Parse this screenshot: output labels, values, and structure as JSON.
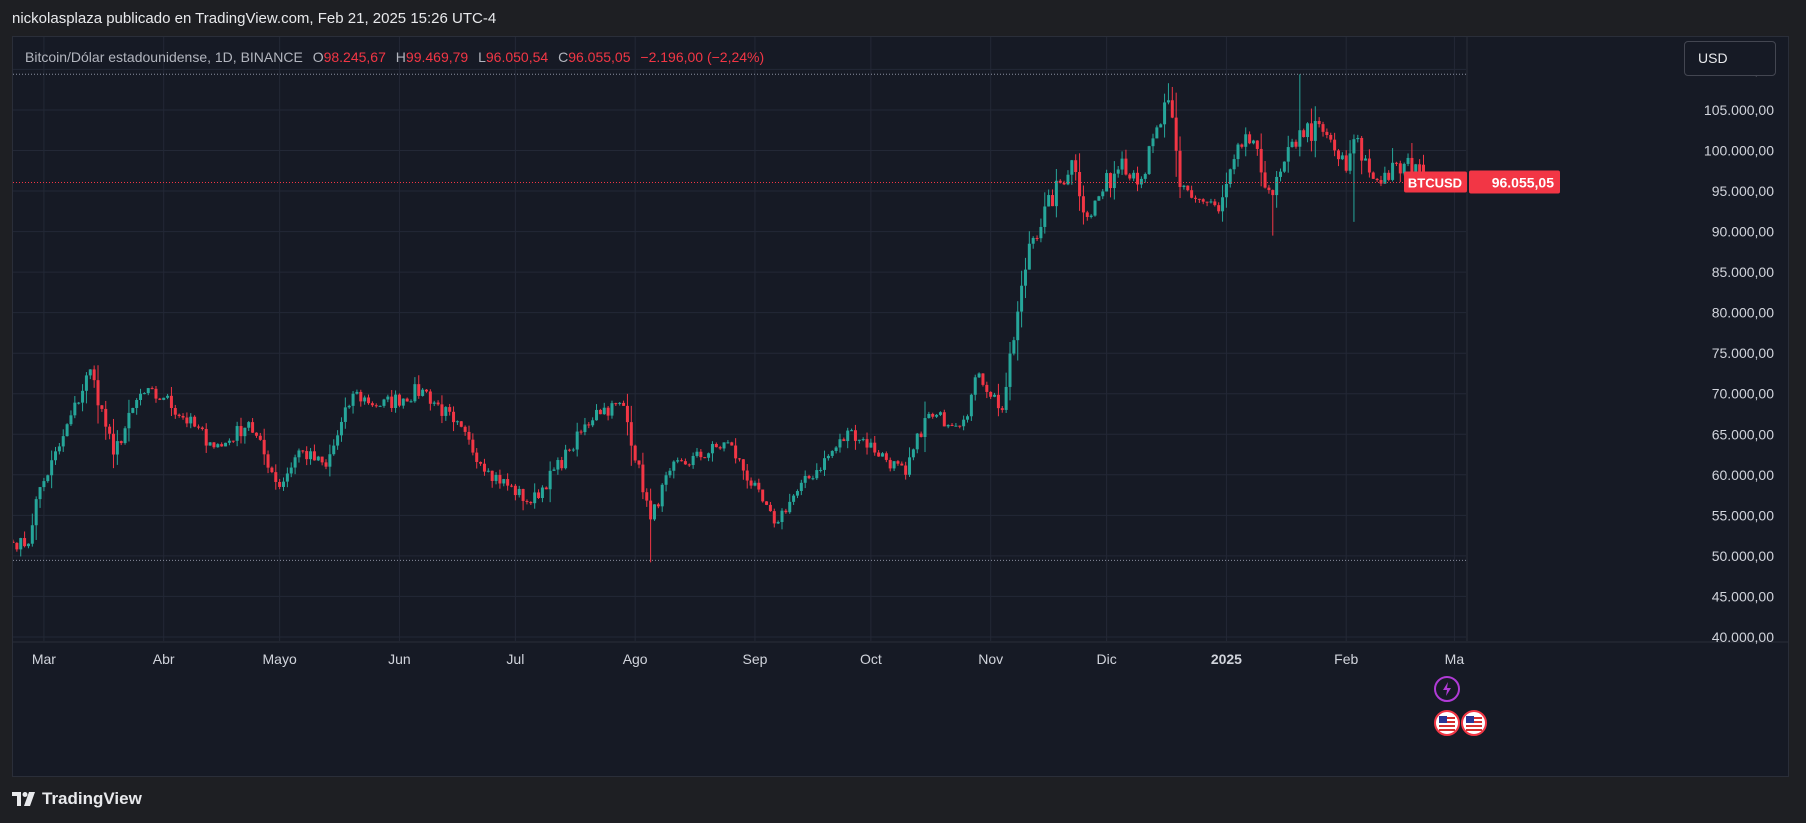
{
  "caption": "nickolasplaza publicado en TradingView.com, Feb 21, 2025 15:26 UTC-4",
  "legend": {
    "symbol": "Bitcoin/Dólar estadounidense, 1D, BINANCE",
    "o_label": "O",
    "o_value": "98.245,67",
    "h_label": "H",
    "h_value": "99.469,79",
    "l_label": "L",
    "l_value": "96.050,54",
    "c_label": "C",
    "c_value": "96.055,05",
    "change": "−2.196,00 (−2,24%)"
  },
  "currency_button": "USD",
  "brand": "TradingView",
  "price_tag": {
    "label": "BTCUSD",
    "value": "96.055,05"
  },
  "colors": {
    "up": "#26a69a",
    "down": "#f23645",
    "background": "#161a25",
    "grid": "#232836",
    "text": "#d1d4dc",
    "flash": "#b03bd6"
  },
  "icons": [
    "lightning-event-icon",
    "us-flag-event-icon",
    "us-flag-event-icon"
  ],
  "chart_data": {
    "type": "candlestick",
    "series_name": "BTCUSD",
    "x_axis_labels": [
      {
        "label": "Mar",
        "date": "2024-03-01"
      },
      {
        "label": "Abr",
        "date": "2024-04-01"
      },
      {
        "label": "Mayo",
        "date": "2024-05-01"
      },
      {
        "label": "Jun",
        "date": "2024-06-01"
      },
      {
        "label": "Jul",
        "date": "2024-07-01"
      },
      {
        "label": "Ago",
        "date": "2024-08-01"
      },
      {
        "label": "Sep",
        "date": "2024-09-01"
      },
      {
        "label": "Oct",
        "date": "2024-10-01"
      },
      {
        "label": "Nov",
        "date": "2024-11-01"
      },
      {
        "label": "Dic",
        "date": "2024-12-01"
      },
      {
        "label": "2025",
        "date": "2025-01-01",
        "bold": true
      },
      {
        "label": "Feb",
        "date": "2025-02-01"
      },
      {
        "label": "Ma",
        "date": "2025-03-01"
      }
    ],
    "x_range": [
      "2024-02-22",
      "2025-03-04"
    ],
    "y_ticks": [
      {
        "value": 40000,
        "label": "40.000,00"
      },
      {
        "value": 45000,
        "label": "45.000,00"
      },
      {
        "value": 50000,
        "label": "50.000,00"
      },
      {
        "value": 55000,
        "label": "55.000,00"
      },
      {
        "value": 60000,
        "label": "60.000,00"
      },
      {
        "value": 65000,
        "label": "65.000,00"
      },
      {
        "value": 70000,
        "label": "70.000,00"
      },
      {
        "value": 75000,
        "label": "75.000,00"
      },
      {
        "value": 80000,
        "label": "80.000,00"
      },
      {
        "value": 85000,
        "label": "85.000,00"
      },
      {
        "value": 90000,
        "label": "90.000,00"
      },
      {
        "value": 95000,
        "label": "95.000,00"
      },
      {
        "value": 100000,
        "label": "100.000,00"
      },
      {
        "value": 105000,
        "label": "105.000,00"
      },
      {
        "value": 110000,
        "label": "110.000,00"
      }
    ],
    "y_range": [
      39500,
      114000
    ],
    "last_price": 96055.05,
    "range_high_line": 109400,
    "range_low_line": 49450,
    "close_anchors": [
      [
        "2024-02-22",
        51600
      ],
      [
        "2024-02-26",
        51500
      ],
      [
        "2024-02-28",
        57000
      ],
      [
        "2024-03-05",
        63500
      ],
      [
        "2024-03-13",
        73000
      ],
      [
        "2024-03-19",
        62500
      ],
      [
        "2024-03-26",
        70000
      ],
      [
        "2024-04-01",
        69500
      ],
      [
        "2024-04-13",
        64000
      ],
      [
        "2024-04-16",
        63500
      ],
      [
        "2024-04-23",
        66500
      ],
      [
        "2024-05-01",
        58500
      ],
      [
        "2024-05-06",
        63000
      ],
      [
        "2024-05-13",
        61000
      ],
      [
        "2024-05-20",
        70000
      ],
      [
        "2024-05-27",
        68500
      ],
      [
        "2024-06-07",
        70500
      ],
      [
        "2024-06-15",
        66500
      ],
      [
        "2024-06-24",
        60500
      ],
      [
        "2024-07-05",
        56500
      ],
      [
        "2024-07-15",
        63000
      ],
      [
        "2024-07-22",
        68000
      ],
      [
        "2024-07-29",
        68500
      ],
      [
        "2024-08-05",
        54500
      ],
      [
        "2024-08-10",
        60500
      ],
      [
        "2024-08-25",
        64000
      ],
      [
        "2024-09-06",
        54000
      ],
      [
        "2024-09-12",
        58000
      ],
      [
        "2024-09-26",
        65500
      ],
      [
        "2024-10-10",
        60000
      ],
      [
        "2024-10-15",
        67000
      ],
      [
        "2024-10-25",
        66800
      ],
      [
        "2024-10-29",
        72500
      ],
      [
        "2024-11-04",
        68000
      ],
      [
        "2024-11-11",
        88500
      ],
      [
        "2024-11-22",
        98800
      ],
      [
        "2024-11-26",
        91800
      ],
      [
        "2024-12-05",
        99000
      ],
      [
        "2024-12-10",
        96500
      ],
      [
        "2024-12-17",
        106200
      ],
      [
        "2024-12-20",
        95500
      ],
      [
        "2024-12-30",
        92500
      ],
      [
        "2025-01-06",
        102000
      ],
      [
        "2025-01-13",
        94500
      ],
      [
        "2025-01-20",
        102500
      ],
      [
        "2025-01-26",
        102300
      ],
      [
        "2025-02-01",
        97500
      ],
      [
        "2025-02-03",
        101400
      ],
      [
        "2025-02-08",
        96500
      ],
      [
        "2025-02-19",
        98300
      ],
      [
        "2025-02-21",
        96055
      ]
    ],
    "notable_wicks": [
      [
        "2024-08-05",
        49200
      ],
      [
        "2024-12-17",
        108300
      ],
      [
        "2025-01-20",
        109400
      ],
      [
        "2025-01-13",
        89500
      ],
      [
        "2025-02-03",
        91200
      ]
    ],
    "last_candle": {
      "date": "2025-02-21",
      "open": 98245.67,
      "high": 99469.79,
      "low": 96050.54,
      "close": 96055.05
    }
  }
}
